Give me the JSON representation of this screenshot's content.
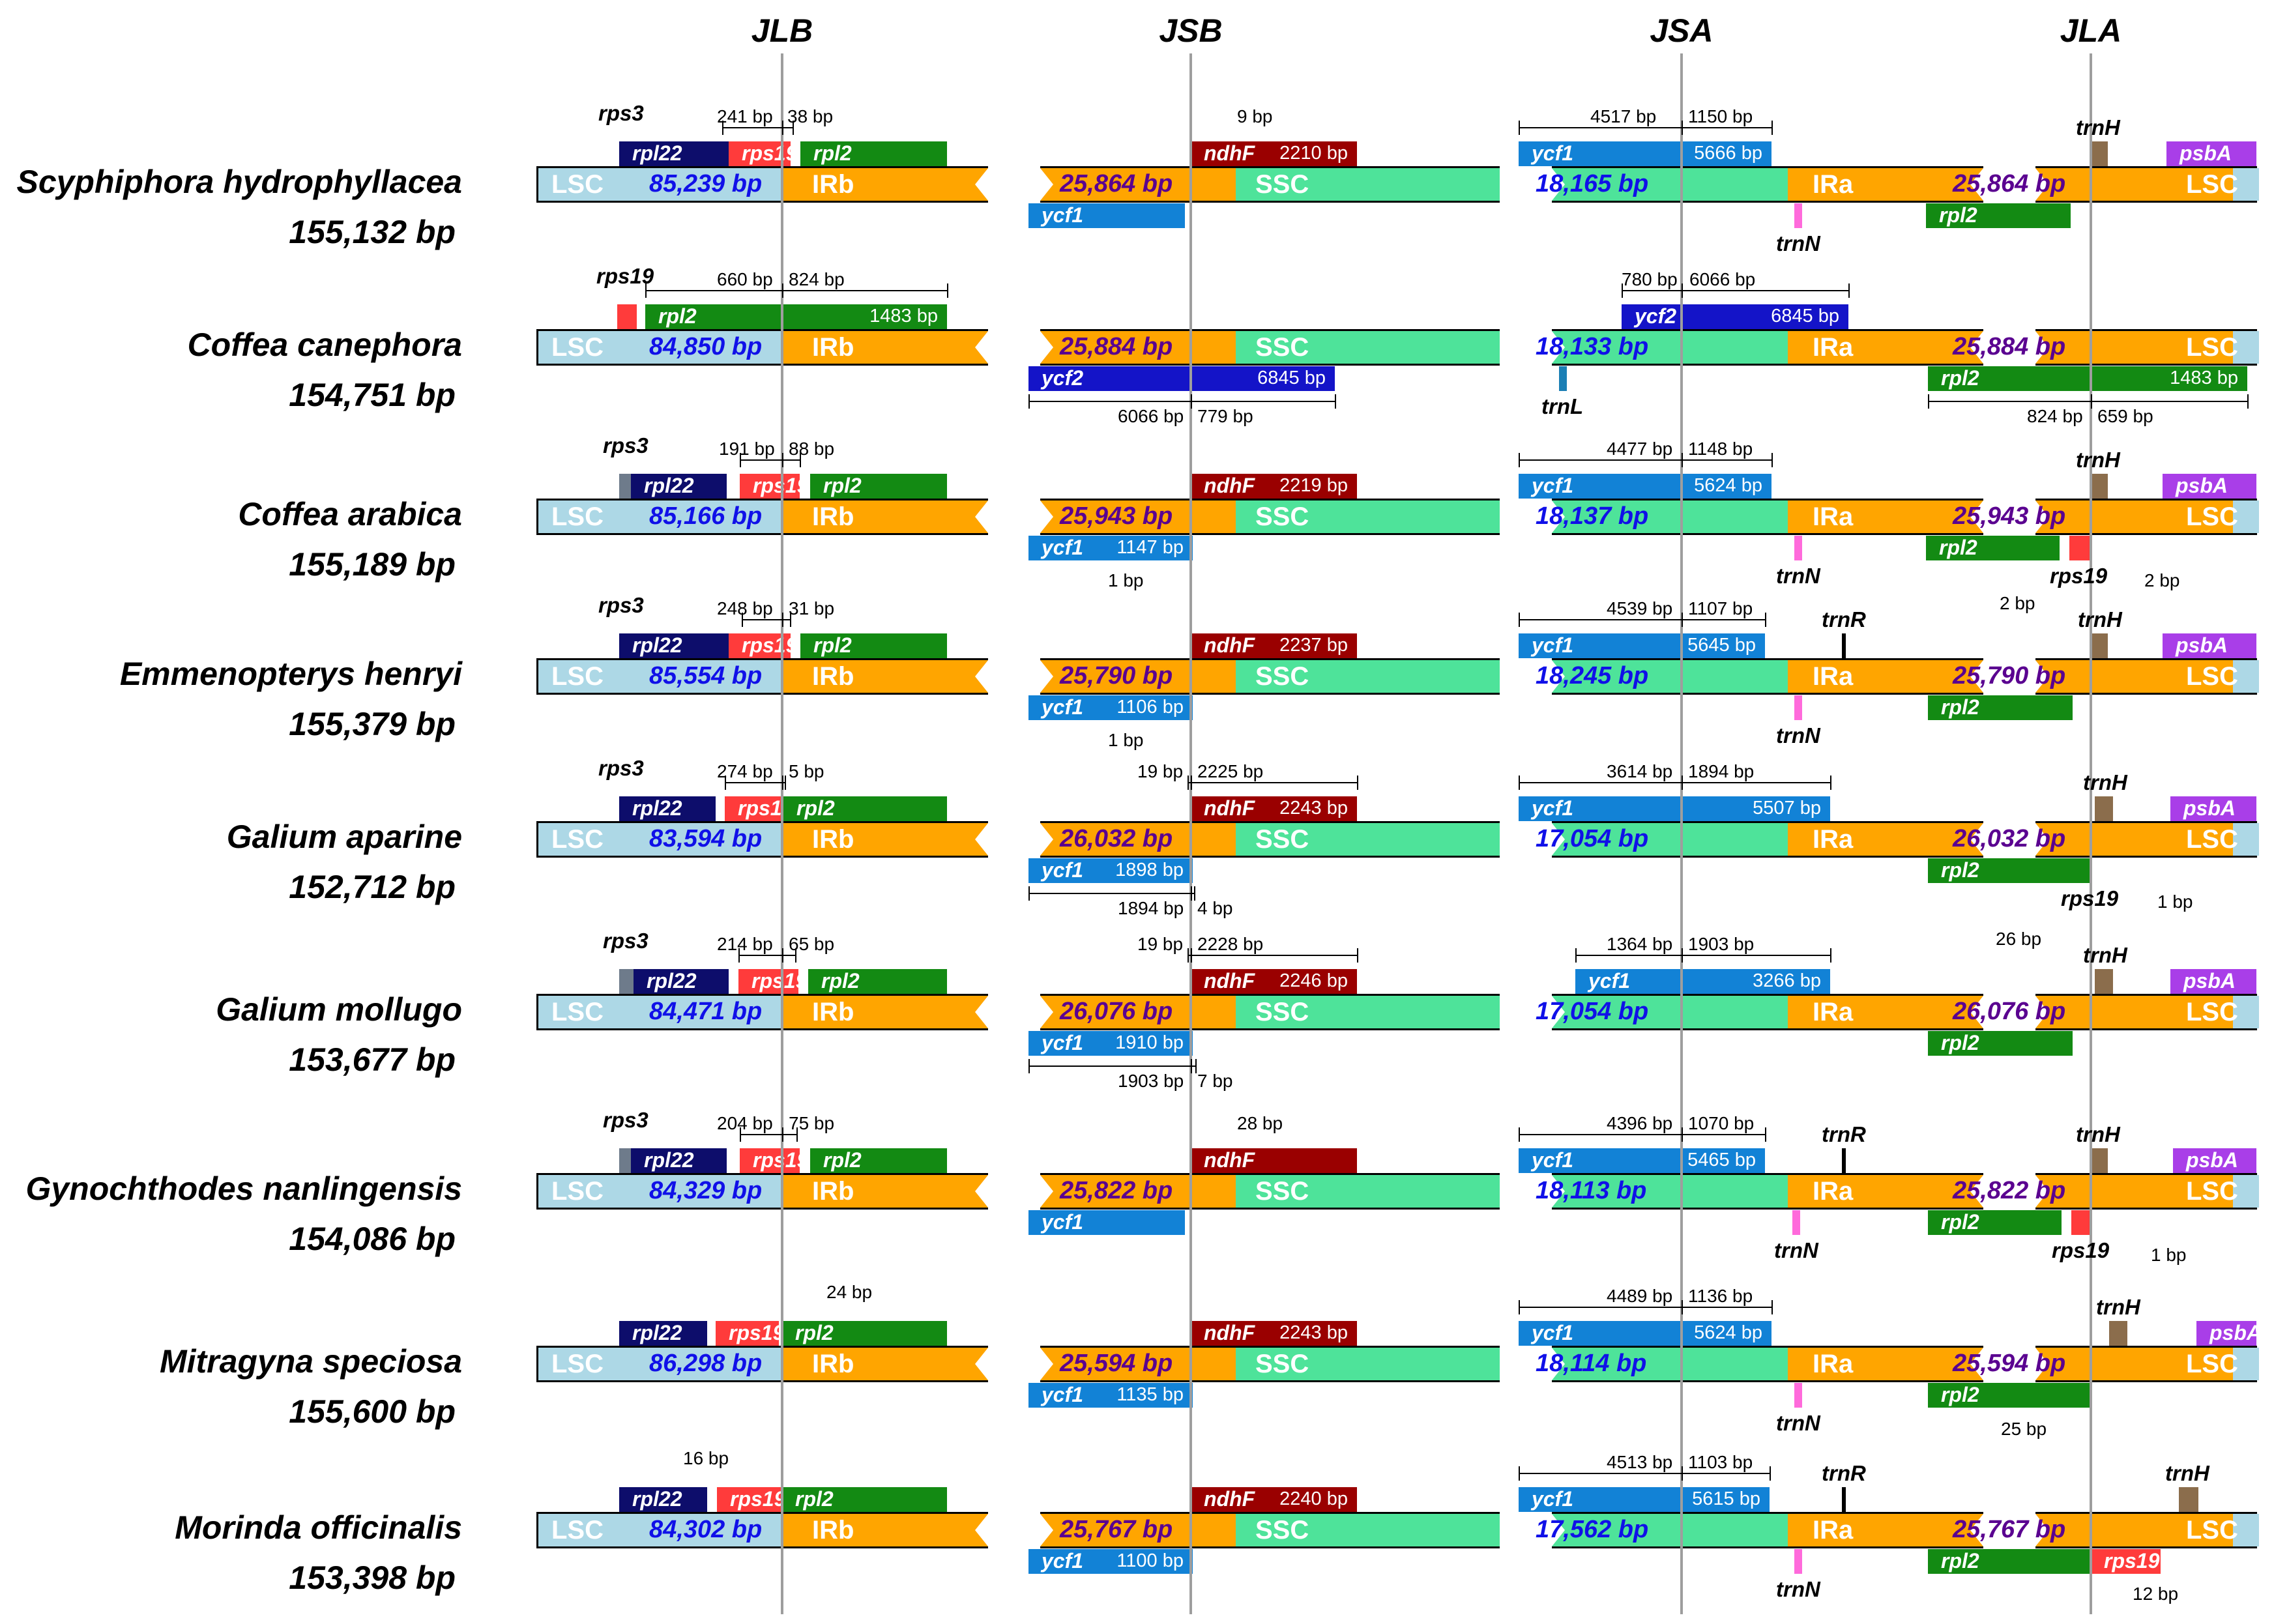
{
  "junctions": [
    "JLB",
    "JSB",
    "JSA",
    "JLA"
  ],
  "regions": {
    "lsc": "LSC",
    "irb": "IRb",
    "ssc": "SSC",
    "ira": "IRa"
  },
  "species": [
    {
      "name": "Scyphiphora hydrophyllacea",
      "size": "155,132 bp",
      "lsc_len": "85,239 bp",
      "ir_len": "25,864 bp",
      "ssc_len": "18,165 bp",
      "notes": {
        "jlb_left": "241 bp",
        "jlb_right": "38 bp",
        "jsb": "9 bp",
        "jsa_left": "4517 bp",
        "jsa_right": "1150 bp",
        "ycf1_top": "5666 bp",
        "ndhF": "2210 bp"
      }
    },
    {
      "name": "Coffea canephora",
      "size": "154,751 bp",
      "lsc_len": "84,850 bp",
      "ir_len": "25,884 bp",
      "ssc_len": "18,133 bp",
      "notes": {
        "jlb_left": "660 bp",
        "jlb_right": "824 bp",
        "rpl2_top": "1483 bp",
        "jsa_left": "780 bp",
        "jsa_right": "6066 bp",
        "ycf2_top": "6845 bp",
        "ycf2_bottom": "6845 bp",
        "jsb_left": "6066 bp",
        "jsb_right": "779 bp",
        "rpl2_bottom": "1483 bp",
        "jla_left": "824 bp",
        "jla_right": "659 bp"
      }
    },
    {
      "name": "Coffea arabica",
      "size": "155,189 bp",
      "lsc_len": "85,166 bp",
      "ir_len": "25,943 bp",
      "ssc_len": "18,137 bp",
      "notes": {
        "jlb_left": "191 bp",
        "jlb_right": "88 bp",
        "ndhF": "2219 bp",
        "jsa_left": "4477 bp",
        "jsa_right": "1148 bp",
        "ycf1_top": "5624 bp",
        "ycf1_bottom": "1147 bp",
        "jsb": "1 bp",
        "rps19_jla": "2 bp"
      }
    },
    {
      "name": "Emmenopterys henryi",
      "size": "155,379 bp",
      "lsc_len": "85,554 bp",
      "ir_len": "25,790 bp",
      "ssc_len": "18,245 bp",
      "notes": {
        "jlb_left": "248 bp",
        "jlb_right": "31 bp",
        "ndhF": "2237 bp",
        "jsa_left": "4539 bp",
        "jsa_right": "1107 bp",
        "ycf1_top": "5645 bp",
        "ycf1_bottom": "1106 bp",
        "jsb": "1 bp",
        "trnH_jla": "2 bp"
      }
    },
    {
      "name": "Galium aparine",
      "size": "152,712 bp",
      "lsc_len": "83,594 bp",
      "ir_len": "26,032 bp",
      "ssc_len": "17,054 bp",
      "notes": {
        "jlb_left": "274 bp",
        "jlb_right": "5 bp",
        "jsb_left": "19 bp",
        "jsb_right": "2225 bp",
        "ndhF": "2243 bp",
        "jsa_left": "3614 bp",
        "jsa_right": "1894 bp",
        "ycf1_top": "5507 bp",
        "ycf1_bottom": "1898 bp",
        "jsb_b_left": "1894 bp",
        "jsb_b_right": "4 bp",
        "rps19_jla": "1 bp"
      }
    },
    {
      "name": "Galium mollugo",
      "size": "153,677 bp",
      "lsc_len": "84,471 bp",
      "ir_len": "26,076 bp",
      "ssc_len": "17,054 bp",
      "notes": {
        "jlb_left": "214 bp",
        "jlb_right": "65 bp",
        "jsb_left": "19 bp",
        "jsb_right": "2228 bp",
        "ndhF": "2246 bp",
        "jsa_left": "1364 bp",
        "jsa_right": "1903 bp",
        "ycf1_top": "3266 bp",
        "ycf1_bottom": "1910 bp",
        "jsb_b_left": "1903 bp",
        "jsb_b_right": "7 bp",
        "trnH_jla": "26 bp"
      }
    },
    {
      "name": "Gynochthodes nanlingensis",
      "size": "154,086 bp",
      "lsc_len": "84,329 bp",
      "ir_len": "25,822 bp",
      "ssc_len": "18,113 bp",
      "notes": {
        "jlb_left": "204 bp",
        "jlb_right": "75 bp",
        "jsb": "28 bp",
        "jsa_left": "4396 bp",
        "jsa_right": "1070 bp",
        "ycf1_top": "5465 bp",
        "rps19_jla": "1 bp"
      }
    },
    {
      "name": "Mitragyna speciosa",
      "size": "155,600 bp",
      "lsc_len": "86,298 bp",
      "ir_len": "25,594 bp",
      "ssc_len": "18,114 bp",
      "notes": {
        "jlb": "24 bp",
        "ndhF": "2243 bp",
        "jsa_left": "4489 bp",
        "jsa_right": "1136 bp",
        "ycf1_top": "5624 bp",
        "ycf1_bottom": "1135 bp",
        "rpl2_jla": "25 bp"
      }
    },
    {
      "name": "Morinda officinalis",
      "size": "153,398 bp",
      "lsc_len": "84,302 bp",
      "ir_len": "25,767 bp",
      "ssc_len": "17,562 bp",
      "notes": {
        "jlb": "16 bp",
        "ndhF": "2240 bp",
        "jsa_left": "4513 bp",
        "jsa_right": "1103 bp",
        "ycf1_top": "5615 bp",
        "ycf1_bottom": "1100 bp",
        "rps19_jla": "12 bp"
      }
    }
  ],
  "genes": {
    "rps3": "rps3",
    "rpl22": "rpl22",
    "rps19": "rps19",
    "rpl2": "rpl2",
    "ndhF": "ndhF",
    "ycf1": "ycf1",
    "ycf2": "ycf2",
    "trnH": "trnH",
    "psbA": "psbA",
    "trnN": "trnN",
    "trnR": "trnR",
    "trnL": "trnL"
  },
  "colors": {
    "lsc": "#add8e6",
    "ir": "#ffa500",
    "ssc": "#4ee39a",
    "rps3": "#6e7b8b",
    "rpl22": "#0d0d6b",
    "rps19": "#ff3b3b",
    "rpl2": "#138a13",
    "ndhF": "#9a0000",
    "ycf1": "#1282d6",
    "ycf2": "#1414c8",
    "trnH": "#8b6d4c",
    "psbA": "#a93ee8",
    "trnN": "#ff6adb",
    "trnR": "#000000"
  }
}
